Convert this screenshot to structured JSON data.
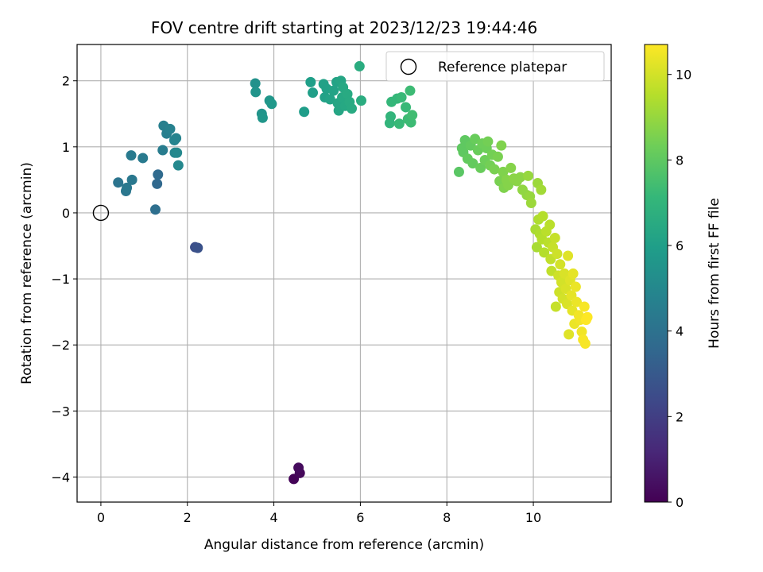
{
  "chart_data": {
    "type": "scatter",
    "title": "FOV centre drift starting at 2023/12/23 19:44:46",
    "xlabel": "Angular distance from reference (arcmin)",
    "ylabel": "Rotation from reference (arcmin)",
    "colorbar_label": "Hours from first FF file",
    "xlim": [
      -0.55,
      11.8
    ],
    "ylim": [
      -4.38,
      2.55
    ],
    "xticks": [
      0,
      2,
      4,
      6,
      8,
      10
    ],
    "yticks": [
      -4,
      -3,
      -2,
      -1,
      0,
      1,
      2
    ],
    "colorbar_range": [
      0,
      10.7
    ],
    "colorbar_ticks": [
      0,
      2,
      4,
      6,
      8,
      10
    ],
    "colormap": "viridis",
    "grid": true,
    "legend": {
      "placement": "top-right",
      "entries": [
        "Reference platepar"
      ]
    },
    "reference_point": {
      "x": 0,
      "y": 0
    },
    "points": [
      {
        "x": 4.46,
        "y": -4.03,
        "t": 0.1
      },
      {
        "x": 4.6,
        "y": -3.94,
        "t": 0.2
      },
      {
        "x": 4.57,
        "y": -3.86,
        "t": 0.3
      },
      {
        "x": 2.18,
        "y": -0.52,
        "t": 2.6
      },
      {
        "x": 2.24,
        "y": -0.53,
        "t": 2.7
      },
      {
        "x": 1.26,
        "y": 0.05,
        "t": 3.9
      },
      {
        "x": 1.3,
        "y": 0.44,
        "t": 3.6
      },
      {
        "x": 1.32,
        "y": 0.58,
        "t": 3.7
      },
      {
        "x": 0.4,
        "y": 0.46,
        "t": 4.1
      },
      {
        "x": 0.58,
        "y": 0.33,
        "t": 4.2
      },
      {
        "x": 0.6,
        "y": 0.38,
        "t": 4.3
      },
      {
        "x": 0.72,
        "y": 0.5,
        "t": 4.3
      },
      {
        "x": 0.7,
        "y": 0.87,
        "t": 4.4
      },
      {
        "x": 0.97,
        "y": 0.83,
        "t": 4.4
      },
      {
        "x": 1.43,
        "y": 0.95,
        "t": 4.5
      },
      {
        "x": 1.45,
        "y": 1.32,
        "t": 4.6
      },
      {
        "x": 1.52,
        "y": 1.2,
        "t": 4.6
      },
      {
        "x": 1.6,
        "y": 1.27,
        "t": 4.7
      },
      {
        "x": 1.7,
        "y": 1.1,
        "t": 4.8
      },
      {
        "x": 1.74,
        "y": 1.13,
        "t": 4.8
      },
      {
        "x": 1.71,
        "y": 0.91,
        "t": 4.9
      },
      {
        "x": 1.76,
        "y": 0.91,
        "t": 5.0
      },
      {
        "x": 1.79,
        "y": 0.72,
        "t": 5.0
      },
      {
        "x": 3.57,
        "y": 1.96,
        "t": 5.4
      },
      {
        "x": 3.58,
        "y": 1.83,
        "t": 5.5
      },
      {
        "x": 3.72,
        "y": 1.5,
        "t": 5.5
      },
      {
        "x": 3.74,
        "y": 1.44,
        "t": 5.6
      },
      {
        "x": 3.9,
        "y": 1.7,
        "t": 5.6
      },
      {
        "x": 3.95,
        "y": 1.65,
        "t": 5.7
      },
      {
        "x": 4.7,
        "y": 1.53,
        "t": 5.9
      },
      {
        "x": 4.85,
        "y": 1.98,
        "t": 6.0
      },
      {
        "x": 4.9,
        "y": 1.82,
        "t": 6.0
      },
      {
        "x": 5.15,
        "y": 1.95,
        "t": 6.1
      },
      {
        "x": 5.18,
        "y": 1.75,
        "t": 6.1
      },
      {
        "x": 5.22,
        "y": 1.88,
        "t": 6.1
      },
      {
        "x": 5.3,
        "y": 1.72,
        "t": 6.2
      },
      {
        "x": 5.38,
        "y": 1.85,
        "t": 6.2
      },
      {
        "x": 5.45,
        "y": 1.98,
        "t": 6.2
      },
      {
        "x": 5.48,
        "y": 1.66,
        "t": 6.3
      },
      {
        "x": 5.5,
        "y": 1.55,
        "t": 6.3
      },
      {
        "x": 5.55,
        "y": 2.0,
        "t": 6.3
      },
      {
        "x": 5.58,
        "y": 1.75,
        "t": 6.4
      },
      {
        "x": 5.6,
        "y": 1.9,
        "t": 6.4
      },
      {
        "x": 5.65,
        "y": 1.62,
        "t": 6.4
      },
      {
        "x": 5.7,
        "y": 1.8,
        "t": 6.5
      },
      {
        "x": 5.75,
        "y": 1.68,
        "t": 6.5
      },
      {
        "x": 5.8,
        "y": 1.58,
        "t": 6.5
      },
      {
        "x": 5.98,
        "y": 2.22,
        "t": 6.6
      },
      {
        "x": 6.02,
        "y": 1.7,
        "t": 6.6
      },
      {
        "x": 6.68,
        "y": 1.36,
        "t": 7.0
      },
      {
        "x": 6.7,
        "y": 1.46,
        "t": 7.0
      },
      {
        "x": 6.72,
        "y": 1.68,
        "t": 7.1
      },
      {
        "x": 6.85,
        "y": 1.73,
        "t": 7.1
      },
      {
        "x": 6.9,
        "y": 1.35,
        "t": 7.2
      },
      {
        "x": 6.95,
        "y": 1.75,
        "t": 7.2
      },
      {
        "x": 7.05,
        "y": 1.6,
        "t": 7.2
      },
      {
        "x": 7.1,
        "y": 1.42,
        "t": 7.3
      },
      {
        "x": 7.15,
        "y": 1.85,
        "t": 7.3
      },
      {
        "x": 7.17,
        "y": 1.37,
        "t": 7.3
      },
      {
        "x": 7.2,
        "y": 1.48,
        "t": 7.4
      },
      {
        "x": 8.28,
        "y": 0.62,
        "t": 7.9
      },
      {
        "x": 8.35,
        "y": 0.98,
        "t": 8.0
      },
      {
        "x": 8.38,
        "y": 0.92,
        "t": 8.0
      },
      {
        "x": 8.42,
        "y": 1.1,
        "t": 8.0
      },
      {
        "x": 8.48,
        "y": 0.82,
        "t": 8.1
      },
      {
        "x": 8.55,
        "y": 1.02,
        "t": 8.1
      },
      {
        "x": 8.6,
        "y": 0.75,
        "t": 8.1
      },
      {
        "x": 8.65,
        "y": 1.12,
        "t": 8.2
      },
      {
        "x": 8.72,
        "y": 0.95,
        "t": 8.2
      },
      {
        "x": 8.78,
        "y": 0.68,
        "t": 8.2
      },
      {
        "x": 8.82,
        "y": 1.05,
        "t": 8.3
      },
      {
        "x": 8.88,
        "y": 0.8,
        "t": 8.3
      },
      {
        "x": 8.92,
        "y": 0.98,
        "t": 8.3
      },
      {
        "x": 8.95,
        "y": 1.08,
        "t": 8.4
      },
      {
        "x": 9.0,
        "y": 0.72,
        "t": 8.4
      },
      {
        "x": 9.05,
        "y": 0.88,
        "t": 8.4
      },
      {
        "x": 9.1,
        "y": 0.66,
        "t": 8.5
      },
      {
        "x": 9.18,
        "y": 0.85,
        "t": 8.5
      },
      {
        "x": 9.22,
        "y": 0.48,
        "t": 8.5
      },
      {
        "x": 9.26,
        "y": 1.02,
        "t": 8.6
      },
      {
        "x": 9.3,
        "y": 0.62,
        "t": 8.6
      },
      {
        "x": 9.32,
        "y": 0.38,
        "t": 8.6
      },
      {
        "x": 9.38,
        "y": 0.5,
        "t": 8.7
      },
      {
        "x": 9.42,
        "y": 0.42,
        "t": 8.7
      },
      {
        "x": 9.48,
        "y": 0.68,
        "t": 8.7
      },
      {
        "x": 9.55,
        "y": 0.52,
        "t": 8.8
      },
      {
        "x": 9.62,
        "y": 0.48,
        "t": 8.8
      },
      {
        "x": 9.7,
        "y": 0.54,
        "t": 8.8
      },
      {
        "x": 9.75,
        "y": 0.35,
        "t": 8.9
      },
      {
        "x": 9.85,
        "y": 0.27,
        "t": 8.9
      },
      {
        "x": 9.88,
        "y": 0.56,
        "t": 9.0
      },
      {
        "x": 9.92,
        "y": 0.25,
        "t": 9.0
      },
      {
        "x": 9.95,
        "y": 0.15,
        "t": 9.1
      },
      {
        "x": 10.1,
        "y": 0.45,
        "t": 9.1
      },
      {
        "x": 10.18,
        "y": 0.35,
        "t": 9.2
      },
      {
        "x": 10.05,
        "y": -0.25,
        "t": 9.3
      },
      {
        "x": 10.08,
        "y": -0.52,
        "t": 9.3
      },
      {
        "x": 10.12,
        "y": -0.1,
        "t": 9.4
      },
      {
        "x": 10.15,
        "y": -0.32,
        "t": 9.4
      },
      {
        "x": 10.2,
        "y": -0.4,
        "t": 9.5
      },
      {
        "x": 10.22,
        "y": -0.05,
        "t": 9.5
      },
      {
        "x": 10.25,
        "y": -0.6,
        "t": 9.5
      },
      {
        "x": 10.3,
        "y": -0.28,
        "t": 9.6
      },
      {
        "x": 10.35,
        "y": -0.45,
        "t": 9.6
      },
      {
        "x": 10.38,
        "y": -0.18,
        "t": 9.6
      },
      {
        "x": 10.4,
        "y": -0.7,
        "t": 9.7
      },
      {
        "x": 10.42,
        "y": -0.88,
        "t": 9.7
      },
      {
        "x": 10.45,
        "y": -0.52,
        "t": 9.8
      },
      {
        "x": 10.5,
        "y": -0.38,
        "t": 9.8
      },
      {
        "x": 10.52,
        "y": -1.42,
        "t": 9.8
      },
      {
        "x": 10.55,
        "y": -0.62,
        "t": 9.9
      },
      {
        "x": 10.58,
        "y": -0.95,
        "t": 9.9
      },
      {
        "x": 10.6,
        "y": -1.2,
        "t": 9.9
      },
      {
        "x": 10.62,
        "y": -0.78,
        "t": 10.0
      },
      {
        "x": 10.65,
        "y": -1.05,
        "t": 10.0
      },
      {
        "x": 10.68,
        "y": -1.3,
        "t": 10.0
      },
      {
        "x": 10.72,
        "y": -0.92,
        "t": 10.1
      },
      {
        "x": 10.75,
        "y": -1.15,
        "t": 10.1
      },
      {
        "x": 10.78,
        "y": -1.38,
        "t": 10.1
      },
      {
        "x": 10.8,
        "y": -0.65,
        "t": 10.2
      },
      {
        "x": 10.82,
        "y": -1.84,
        "t": 10.2
      },
      {
        "x": 10.85,
        "y": -1.02,
        "t": 10.2
      },
      {
        "x": 10.88,
        "y": -1.25,
        "t": 10.3
      },
      {
        "x": 10.9,
        "y": -1.48,
        "t": 10.3
      },
      {
        "x": 10.92,
        "y": -0.92,
        "t": 10.3
      },
      {
        "x": 10.95,
        "y": -1.68,
        "t": 10.4
      },
      {
        "x": 10.98,
        "y": -1.12,
        "t": 10.4
      },
      {
        "x": 11.0,
        "y": -1.35,
        "t": 10.4
      },
      {
        "x": 11.05,
        "y": -1.55,
        "t": 10.5
      },
      {
        "x": 11.08,
        "y": -1.62,
        "t": 10.5
      },
      {
        "x": 11.12,
        "y": -1.8,
        "t": 10.5
      },
      {
        "x": 11.15,
        "y": -1.92,
        "t": 10.6
      },
      {
        "x": 11.18,
        "y": -1.42,
        "t": 10.6
      },
      {
        "x": 11.2,
        "y": -1.98,
        "t": 10.6
      },
      {
        "x": 11.22,
        "y": -1.62,
        "t": 10.7
      },
      {
        "x": 11.25,
        "y": -1.58,
        "t": 10.7
      }
    ]
  }
}
